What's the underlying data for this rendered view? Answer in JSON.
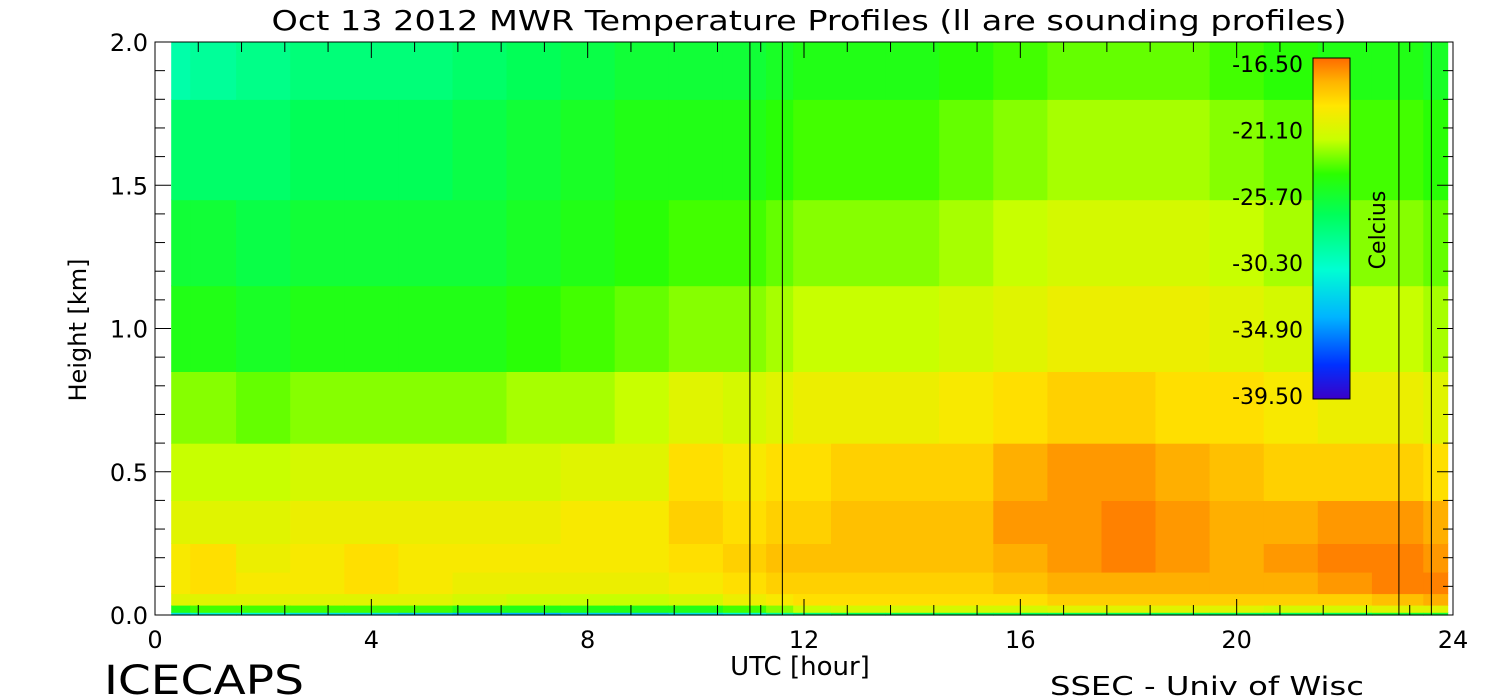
{
  "chart_data": {
    "type": "heatmap",
    "title": "Oct 13 2012 MWR Temperature Profiles (ll are sounding profiles)",
    "xlabel": "UTC [hour]",
    "ylabel": "Height [km]",
    "xlim": [
      0,
      24
    ],
    "ylim": [
      0,
      2.0
    ],
    "x_ticks": [
      "0",
      "4",
      "8",
      "12",
      "16",
      "20",
      "24"
    ],
    "y_ticks": [
      "0.0",
      "0.5",
      "1.0",
      "1.5",
      "2.0"
    ],
    "colorbar": {
      "label": "Celcius",
      "ticks": [
        "-16.50",
        "-21.10",
        "-25.70",
        "-30.30",
        "-34.90",
        "-39.50"
      ],
      "range": [
        -39.5,
        -16.5
      ]
    },
    "sounding_times_utc": [
      11.0,
      11.6,
      23.0,
      23.6
    ],
    "data_extent_x": [
      0.3,
      23.9
    ],
    "times": [
      0.3,
      1.0,
      2.0,
      3.0,
      4.0,
      5.0,
      6.0,
      7.0,
      8.0,
      9.0,
      10.0,
      11.0,
      11.6,
      12.0,
      13.0,
      14.0,
      15.0,
      16.0,
      17.0,
      18.0,
      19.0,
      20.0,
      21.0,
      22.0,
      23.0,
      23.9
    ],
    "heights_km": [
      0.0,
      0.02,
      0.05,
      0.1,
      0.2,
      0.3,
      0.5,
      0.7,
      1.0,
      1.3,
      1.6,
      2.0
    ],
    "temperature_c": [
      [
        -32,
        -25,
        -21,
        -20,
        -20,
        -21,
        -22,
        -23,
        -25,
        -26,
        -27.5,
        -29.5
      ],
      [
        -31,
        -24,
        -21,
        -19.5,
        -19.5,
        -21,
        -22,
        -23,
        -25,
        -26,
        -27.5,
        -29
      ],
      [
        -31,
        -24,
        -21,
        -20,
        -20.5,
        -21,
        -22,
        -23.5,
        -25.5,
        -26.5,
        -27.5,
        -28.5
      ],
      [
        -32,
        -24,
        -21,
        -20,
        -20,
        -20.5,
        -21.5,
        -23,
        -25,
        -26,
        -27,
        -28
      ],
      [
        -32,
        -24,
        -21,
        -19.5,
        -19.5,
        -20.5,
        -21.5,
        -23,
        -25,
        -26,
        -27,
        -28
      ],
      [
        -33,
        -24,
        -21,
        -20,
        -20,
        -20.5,
        -21.5,
        -23,
        -25,
        -26,
        -27,
        -28
      ],
      [
        -34,
        -25,
        -21.5,
        -20.5,
        -20,
        -20.5,
        -21.5,
        -23,
        -25,
        -26,
        -26.5,
        -27.5
      ],
      [
        -34,
        -25,
        -22,
        -20.5,
        -20,
        -20.5,
        -21.5,
        -22.5,
        -24.5,
        -25.5,
        -26,
        -27
      ],
      [
        -33,
        -25,
        -22,
        -20.5,
        -20,
        -20,
        -21,
        -22.5,
        -24,
        -25,
        -25.5,
        -26.5
      ],
      [
        -33,
        -25,
        -22,
        -20.5,
        -20,
        -20,
        -21,
        -22,
        -23.5,
        -24.5,
        -25,
        -26
      ],
      [
        -32,
        -25,
        -21.5,
        -20,
        -19.5,
        -19,
        -19.5,
        -21,
        -23,
        -24,
        -25,
        -26
      ],
      [
        -31,
        -24,
        -20.5,
        -19.5,
        -19,
        -19.5,
        -20,
        -21.5,
        -23,
        -24,
        -25,
        -26
      ],
      [
        -29,
        -23,
        -20,
        -19,
        -18.5,
        -19,
        -19.5,
        -21,
        -22.5,
        -23.5,
        -24.5,
        -25.5
      ],
      [
        -28,
        -22,
        -19.5,
        -19,
        -18.5,
        -19,
        -19.5,
        -20.5,
        -22,
        -23,
        -24,
        -25
      ],
      [
        -27,
        -21.5,
        -19.5,
        -19,
        -18.5,
        -18.5,
        -19,
        -20.5,
        -22,
        -23,
        -24,
        -25
      ],
      [
        -27,
        -21.5,
        -19.5,
        -19,
        -18.5,
        -18.5,
        -19,
        -20.5,
        -22,
        -23,
        -24,
        -25
      ],
      [
        -27,
        -21.5,
        -19.5,
        -19,
        -18.5,
        -18.5,
        -19,
        -20,
        -21.5,
        -22.5,
        -23.5,
        -24.5
      ],
      [
        -27,
        -21.5,
        -19.5,
        -18.5,
        -18,
        -17.5,
        -18,
        -19.5,
        -21,
        -22,
        -23,
        -24
      ],
      [
        -27,
        -21,
        -19,
        -18,
        -17.5,
        -17.5,
        -17.5,
        -19,
        -20.5,
        -21.5,
        -22.5,
        -23.5
      ],
      [
        -27,
        -21,
        -19,
        -18,
        -17,
        -17,
        -17.5,
        -19,
        -20.5,
        -21.5,
        -22.5,
        -23.5
      ],
      [
        -27,
        -21,
        -19,
        -18,
        -17.5,
        -17.5,
        -18,
        -19.5,
        -20.5,
        -21.5,
        -22.5,
        -23.5
      ],
      [
        -27,
        -21,
        -19,
        -18,
        -18,
        -18,
        -18.5,
        -19.5,
        -21,
        -22,
        -23,
        -24
      ],
      [
        -27,
        -21.5,
        -19,
        -18,
        -17.5,
        -18,
        -19,
        -20,
        -21.5,
        -22.5,
        -23.5,
        -24.5
      ],
      [
        -27,
        -21.5,
        -19,
        -17.5,
        -17,
        -17.5,
        -19,
        -20.5,
        -22,
        -23,
        -24,
        -25
      ],
      [
        -26,
        -21,
        -18.5,
        -17,
        -17,
        -17.5,
        -19,
        -20.5,
        -22,
        -23,
        -24,
        -25
      ],
      [
        -26,
        -21,
        -18,
        -17,
        -17.5,
        -18,
        -19.5,
        -21,
        -22.5,
        -23.5,
        -24.5,
        -25.5
      ]
    ]
  },
  "footer": {
    "left_label": "ICECAPS",
    "right_label": "SSEC - Univ of Wisc"
  }
}
